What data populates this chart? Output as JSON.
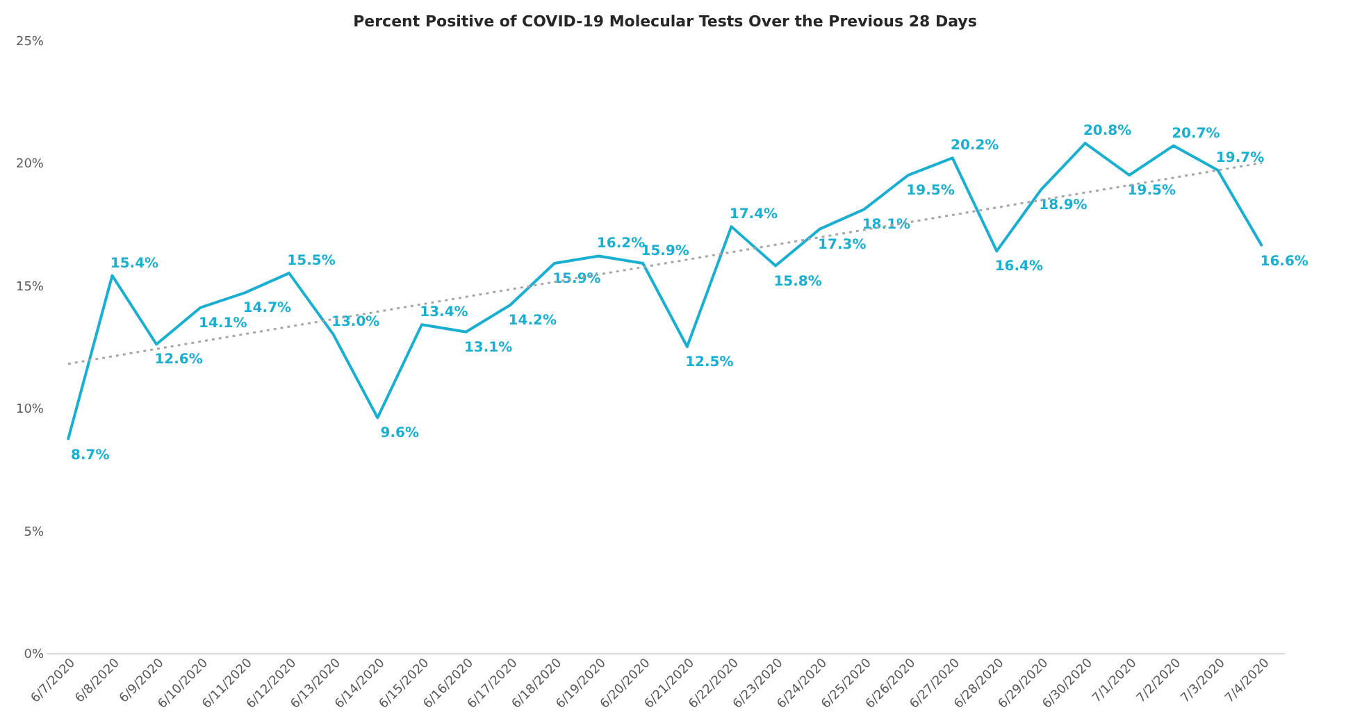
{
  "chart_data": {
    "type": "line",
    "title": "Percent Positive of COVID-19 Molecular Tests Over the Previous 28 Days",
    "categories": [
      "6/7/2020",
      "6/8/2020",
      "6/9/2020",
      "6/10/2020",
      "6/11/2020",
      "6/12/2020",
      "6/13/2020",
      "6/14/2020",
      "6/15/2020",
      "6/16/2020",
      "6/17/2020",
      "6/18/2020",
      "6/19/2020",
      "6/20/2020",
      "6/21/2020",
      "6/22/2020",
      "6/23/2020",
      "6/24/2020",
      "6/25/2020",
      "6/26/2020",
      "6/27/2020",
      "6/28/2020",
      "6/29/2020",
      "6/30/2020",
      "7/1/2020",
      "7/2/2020",
      "7/3/2020",
      "7/4/2020"
    ],
    "series": [
      {
        "color": "#1aafd0",
        "values": [
          8.7,
          15.4,
          12.6,
          14.1,
          14.7,
          15.5,
          13.0,
          9.6,
          13.4,
          13.1,
          14.2,
          15.9,
          16.2,
          15.9,
          12.5,
          17.4,
          15.8,
          17.3,
          18.1,
          19.5,
          20.2,
          16.4,
          18.9,
          20.8,
          19.5,
          20.7,
          19.7,
          16.6
        ],
        "value_labels": [
          "8.7%",
          "15.4%",
          "12.6%",
          "14.1%",
          "14.7%",
          "15.5%",
          "13.0%",
          "9.6%",
          "13.4%",
          "13.1%",
          "14.2%",
          "15.9%",
          "16.2%",
          "15.9%",
          "12.5%",
          "17.4%",
          "15.8%",
          "17.3%",
          "18.1%",
          "19.5%",
          "20.2%",
          "16.4%",
          "18.9%",
          "20.8%",
          "19.5%",
          "20.7%",
          "19.7%",
          "16.6%"
        ]
      },
      {
        "type": "line",
        "color": "#a6a6a6",
        "line_style": "dotted",
        "x": [
          "6/7/2020",
          "7/4/2020"
        ],
        "values": [
          11.8,
          20.0
        ]
      }
    ],
    "ylim": [
      0,
      25
    ],
    "yticks": [
      {
        "value": 0,
        "label": "0%"
      },
      {
        "value": 5,
        "label": "5%"
      },
      {
        "value": 10,
        "label": "10%"
      },
      {
        "value": 15,
        "label": "15%"
      },
      {
        "value": 20,
        "label": "20%"
      },
      {
        "value": 25,
        "label": "25%"
      }
    ],
    "grid": false,
    "marker": "none",
    "line_style": "solid"
  }
}
